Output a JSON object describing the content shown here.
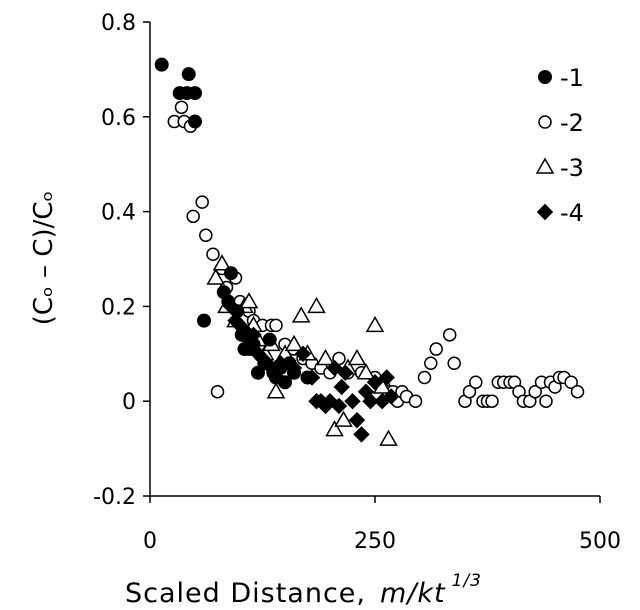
{
  "chart_data": {
    "type": "scatter",
    "xlabel": "Scaled Distance,",
    "xlabel_units": "m/kt",
    "xlabel_exponent": "1/3",
    "ylabel": "(Cₒ – C)/Cₒ",
    "xlim": [
      0,
      500
    ],
    "ylim": [
      -0.2,
      0.8
    ],
    "x_ticks": [
      0,
      250,
      500
    ],
    "y_ticks": [
      -0.2,
      0,
      0.2,
      0.4,
      0.6,
      0.8
    ],
    "x_tick_labels": [
      "0",
      "250",
      "500"
    ],
    "y_tick_labels": [
      "-0.2",
      "0",
      "0.2",
      "0.4",
      "0.6",
      "0.8"
    ],
    "grid": false,
    "legend_position": "top-right",
    "series": [
      {
        "name": "-1",
        "marker": "filled-circle",
        "points": [
          [
            13,
            0.71
          ],
          [
            33,
            0.65
          ],
          [
            43,
            0.69
          ],
          [
            41,
            0.65
          ],
          [
            50,
            0.65
          ],
          [
            50,
            0.59
          ],
          [
            60,
            0.17
          ],
          [
            82,
            0.23
          ],
          [
            90,
            0.27
          ],
          [
            87,
            0.21
          ],
          [
            97,
            0.19
          ],
          [
            102,
            0.14
          ],
          [
            105,
            0.11
          ],
          [
            110,
            0.11
          ],
          [
            115,
            0.12
          ],
          [
            120,
            0.06
          ],
          [
            127,
            0.08
          ],
          [
            133,
            0.13
          ],
          [
            137,
            0.06
          ],
          [
            140,
            0.05
          ],
          [
            145,
            0.07
          ],
          [
            150,
            0.04
          ],
          [
            155,
            0.08
          ],
          [
            160,
            0.06
          ],
          [
            175,
            0.05
          ]
        ]
      },
      {
        "name": "-2",
        "marker": "open-circle",
        "points": [
          [
            27,
            0.59
          ],
          [
            35,
            0.62
          ],
          [
            38,
            0.59
          ],
          [
            45,
            0.58
          ],
          [
            48,
            0.39
          ],
          [
            58,
            0.42
          ],
          [
            62,
            0.35
          ],
          [
            70,
            0.31
          ],
          [
            75,
            0.02
          ],
          [
            80,
            0.28
          ],
          [
            85,
            0.24
          ],
          [
            90,
            0.27
          ],
          [
            95,
            0.26
          ],
          [
            100,
            0.21
          ],
          [
            110,
            0.19
          ],
          [
            115,
            0.17
          ],
          [
            125,
            0.16
          ],
          [
            135,
            0.16
          ],
          [
            140,
            0.16
          ],
          [
            150,
            0.12
          ],
          [
            160,
            0.11
          ],
          [
            170,
            0.09
          ],
          [
            180,
            0.08
          ],
          [
            190,
            0.07
          ],
          [
            200,
            0.06
          ],
          [
            210,
            0.09
          ],
          [
            220,
            0.06
          ],
          [
            235,
            0.06
          ],
          [
            250,
            0.05
          ],
          [
            260,
            0.03
          ],
          [
            265,
            0.02
          ],
          [
            270,
            0.02
          ],
          [
            275,
            0.0
          ],
          [
            280,
            0.02
          ],
          [
            285,
            0.01
          ],
          [
            295,
            0.0
          ],
          [
            305,
            0.05
          ],
          [
            312,
            0.08
          ],
          [
            318,
            0.11
          ],
          [
            333,
            0.14
          ],
          [
            338,
            0.08
          ],
          [
            350,
            0.0
          ],
          [
            355,
            0.02
          ],
          [
            362,
            0.04
          ],
          [
            370,
            0.0
          ],
          [
            375,
            0.0
          ],
          [
            380,
            0.0
          ],
          [
            387,
            0.04
          ],
          [
            393,
            0.04
          ],
          [
            400,
            0.04
          ],
          [
            405,
            0.04
          ],
          [
            410,
            0.02
          ],
          [
            415,
            0.0
          ],
          [
            422,
            0.0
          ],
          [
            428,
            0.02
          ],
          [
            435,
            0.04
          ],
          [
            440,
            0.0
          ],
          [
            445,
            0.04
          ],
          [
            450,
            0.03
          ],
          [
            455,
            0.05
          ],
          [
            460,
            0.05
          ],
          [
            468,
            0.04
          ],
          [
            475,
            0.02
          ]
        ]
      },
      {
        "name": "-3",
        "marker": "open-triangle",
        "points": [
          [
            73,
            0.26
          ],
          [
            80,
            0.29
          ],
          [
            85,
            0.2
          ],
          [
            95,
            0.17
          ],
          [
            105,
            0.2
          ],
          [
            110,
            0.21
          ],
          [
            115,
            0.16
          ],
          [
            120,
            0.13
          ],
          [
            128,
            0.1
          ],
          [
            135,
            0.12
          ],
          [
            140,
            0.02
          ],
          [
            150,
            0.1
          ],
          [
            160,
            0.12
          ],
          [
            168,
            0.18
          ],
          [
            175,
            0.1
          ],
          [
            185,
            0.2
          ],
          [
            195,
            0.09
          ],
          [
            205,
            -0.06
          ],
          [
            215,
            -0.04
          ],
          [
            220,
            0.07
          ],
          [
            230,
            0.09
          ],
          [
            240,
            0.06
          ],
          [
            250,
            0.16
          ],
          [
            258,
            0.03
          ],
          [
            265,
            -0.08
          ]
        ]
      },
      {
        "name": "-4",
        "marker": "filled-diamond",
        "points": [
          [
            90,
            0.2
          ],
          [
            95,
            0.17
          ],
          [
            100,
            0.16
          ],
          [
            105,
            0.15
          ],
          [
            110,
            0.13
          ],
          [
            115,
            0.14
          ],
          [
            120,
            0.1
          ],
          [
            125,
            0.09
          ],
          [
            135,
            0.07
          ],
          [
            145,
            0.08
          ],
          [
            160,
            0.07
          ],
          [
            170,
            0.1
          ],
          [
            180,
            0.05
          ],
          [
            185,
            0.0
          ],
          [
            190,
            0.0
          ],
          [
            195,
            -0.01
          ],
          [
            200,
            0.0
          ],
          [
            205,
            0.07
          ],
          [
            210,
            -0.01
          ],
          [
            213,
            0.03
          ],
          [
            217,
            0.06
          ],
          [
            225,
            0.0
          ],
          [
            230,
            -0.04
          ],
          [
            235,
            -0.07
          ],
          [
            240,
            0.02
          ],
          [
            245,
            0.0
          ],
          [
            250,
            0.04
          ],
          [
            258,
            0.0
          ],
          [
            263,
            0.05
          ],
          [
            268,
            0.01
          ]
        ]
      }
    ]
  }
}
